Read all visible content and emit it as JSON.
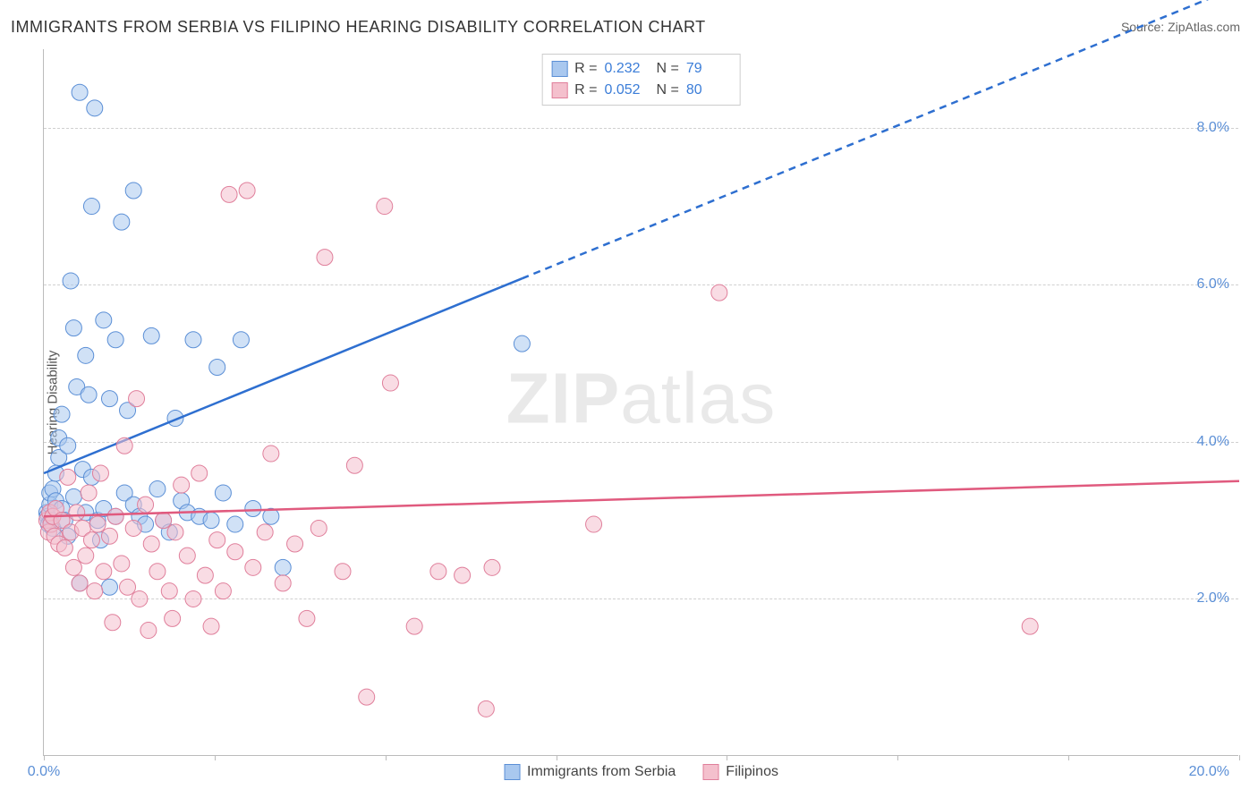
{
  "title": "IMMIGRANTS FROM SERBIA VS FILIPINO HEARING DISABILITY CORRELATION CHART",
  "source": "Source: ZipAtlas.com",
  "watermark": {
    "bold": "ZIP",
    "rest": "atlas"
  },
  "ylabel": "Hearing Disability",
  "chart": {
    "type": "scatter-with-regression",
    "xlim": [
      0,
      20
    ],
    "ylim": [
      0,
      9
    ],
    "xticks": [
      0,
      2.857,
      5.714,
      8.571,
      11.428,
      14.285,
      17.142,
      20
    ],
    "yticks": [
      2,
      4,
      6,
      8
    ],
    "ytick_labels": [
      "2.0%",
      "4.0%",
      "6.0%",
      "8.0%"
    ],
    "x0_label": "0.0%",
    "xmax_label": "20.0%",
    "grid_color": "#d0d0d0",
    "background_color": "#ffffff",
    "marker_radius": 9,
    "marker_opacity": 0.55,
    "series": [
      {
        "name": "Immigrants from Serbia",
        "fill": "#a9c8ef",
        "stroke": "#5b8fd6",
        "line_color": "#2e6fd0",
        "trend": {
          "y_at_x0": 3.6,
          "y_at_xmax": 9.8,
          "solid_until_x": 8.0,
          "dash": "8,6",
          "width": 2.5
        },
        "R": "0.232",
        "N": "79",
        "points": [
          [
            0.05,
            3.1
          ],
          [
            0.06,
            3.05
          ],
          [
            0.08,
            2.95
          ],
          [
            0.1,
            3.2
          ],
          [
            0.1,
            3.35
          ],
          [
            0.12,
            3.0
          ],
          [
            0.15,
            3.4
          ],
          [
            0.15,
            2.9
          ],
          [
            0.2,
            3.25
          ],
          [
            0.2,
            3.6
          ],
          [
            0.25,
            3.8
          ],
          [
            0.25,
            4.05
          ],
          [
            0.3,
            3.15
          ],
          [
            0.3,
            4.35
          ],
          [
            0.35,
            3.0
          ],
          [
            0.4,
            2.8
          ],
          [
            0.4,
            3.95
          ],
          [
            0.45,
            6.05
          ],
          [
            0.5,
            3.3
          ],
          [
            0.5,
            5.45
          ],
          [
            0.55,
            4.7
          ],
          [
            0.6,
            2.2
          ],
          [
            0.6,
            8.45
          ],
          [
            0.65,
            3.65
          ],
          [
            0.7,
            5.1
          ],
          [
            0.7,
            3.1
          ],
          [
            0.75,
            4.6
          ],
          [
            0.8,
            3.55
          ],
          [
            0.8,
            7.0
          ],
          [
            0.85,
            8.25
          ],
          [
            0.9,
            3.0
          ],
          [
            0.95,
            2.75
          ],
          [
            1.0,
            3.15
          ],
          [
            1.0,
            5.55
          ],
          [
            1.1,
            4.55
          ],
          [
            1.1,
            2.15
          ],
          [
            1.2,
            3.05
          ],
          [
            1.2,
            5.3
          ],
          [
            1.3,
            6.8
          ],
          [
            1.35,
            3.35
          ],
          [
            1.4,
            4.4
          ],
          [
            1.5,
            3.2
          ],
          [
            1.5,
            7.2
          ],
          [
            1.6,
            3.05
          ],
          [
            1.7,
            2.95
          ],
          [
            1.8,
            5.35
          ],
          [
            1.9,
            3.4
          ],
          [
            2.0,
            3.0
          ],
          [
            2.1,
            2.85
          ],
          [
            2.2,
            4.3
          ],
          [
            2.3,
            3.25
          ],
          [
            2.4,
            3.1
          ],
          [
            2.5,
            5.3
          ],
          [
            2.6,
            3.05
          ],
          [
            2.8,
            3.0
          ],
          [
            2.9,
            4.95
          ],
          [
            3.0,
            3.35
          ],
          [
            3.2,
            2.95
          ],
          [
            3.3,
            5.3
          ],
          [
            3.5,
            3.15
          ],
          [
            3.8,
            3.05
          ],
          [
            4.0,
            2.4
          ],
          [
            8.0,
            5.25
          ]
        ]
      },
      {
        "name": "Filipinos",
        "fill": "#f4c0cd",
        "stroke": "#e07f9b",
        "line_color": "#e05a7e",
        "trend": {
          "y_at_x0": 3.05,
          "y_at_xmax": 3.5,
          "solid_until_x": 20,
          "dash": "",
          "width": 2.5
        },
        "R": "0.052",
        "N": "80",
        "points": [
          [
            0.05,
            3.0
          ],
          [
            0.08,
            2.85
          ],
          [
            0.1,
            3.1
          ],
          [
            0.12,
            2.95
          ],
          [
            0.15,
            3.05
          ],
          [
            0.18,
            2.8
          ],
          [
            0.2,
            3.15
          ],
          [
            0.25,
            2.7
          ],
          [
            0.3,
            3.0
          ],
          [
            0.35,
            2.65
          ],
          [
            0.4,
            3.55
          ],
          [
            0.45,
            2.85
          ],
          [
            0.5,
            2.4
          ],
          [
            0.55,
            3.1
          ],
          [
            0.6,
            2.2
          ],
          [
            0.65,
            2.9
          ],
          [
            0.7,
            2.55
          ],
          [
            0.75,
            3.35
          ],
          [
            0.8,
            2.75
          ],
          [
            0.85,
            2.1
          ],
          [
            0.9,
            2.95
          ],
          [
            0.95,
            3.6
          ],
          [
            1.0,
            2.35
          ],
          [
            1.1,
            2.8
          ],
          [
            1.15,
            1.7
          ],
          [
            1.2,
            3.05
          ],
          [
            1.3,
            2.45
          ],
          [
            1.35,
            3.95
          ],
          [
            1.4,
            2.15
          ],
          [
            1.5,
            2.9
          ],
          [
            1.55,
            4.55
          ],
          [
            1.6,
            2.0
          ],
          [
            1.7,
            3.2
          ],
          [
            1.75,
            1.6
          ],
          [
            1.8,
            2.7
          ],
          [
            1.9,
            2.35
          ],
          [
            2.0,
            3.0
          ],
          [
            2.1,
            2.1
          ],
          [
            2.15,
            1.75
          ],
          [
            2.2,
            2.85
          ],
          [
            2.3,
            3.45
          ],
          [
            2.4,
            2.55
          ],
          [
            2.5,
            2.0
          ],
          [
            2.6,
            3.6
          ],
          [
            2.7,
            2.3
          ],
          [
            2.8,
            1.65
          ],
          [
            2.9,
            2.75
          ],
          [
            3.0,
            2.1
          ],
          [
            3.1,
            7.15
          ],
          [
            3.2,
            2.6
          ],
          [
            3.4,
            7.2
          ],
          [
            3.5,
            2.4
          ],
          [
            3.7,
            2.85
          ],
          [
            3.8,
            3.85
          ],
          [
            4.0,
            2.2
          ],
          [
            4.2,
            2.7
          ],
          [
            4.4,
            1.75
          ],
          [
            4.6,
            2.9
          ],
          [
            4.7,
            6.35
          ],
          [
            5.0,
            2.35
          ],
          [
            5.2,
            3.7
          ],
          [
            5.4,
            0.75
          ],
          [
            5.7,
            7.0
          ],
          [
            5.8,
            4.75
          ],
          [
            6.2,
            1.65
          ],
          [
            6.6,
            2.35
          ],
          [
            7.0,
            2.3
          ],
          [
            7.4,
            0.6
          ],
          [
            7.5,
            2.4
          ],
          [
            9.2,
            2.95
          ],
          [
            11.3,
            5.9
          ],
          [
            16.5,
            1.65
          ]
        ]
      }
    ]
  },
  "stats_box": {
    "rows": [
      {
        "swatch_fill": "#a9c8ef",
        "swatch_stroke": "#5b8fd6",
        "R": "0.232",
        "N": "79"
      },
      {
        "swatch_fill": "#f4c0cd",
        "swatch_stroke": "#e07f9b",
        "R": "0.052",
        "N": "80"
      }
    ]
  },
  "bottom_legend": [
    {
      "swatch_fill": "#a9c8ef",
      "swatch_stroke": "#5b8fd6",
      "label": "Immigrants from Serbia"
    },
    {
      "swatch_fill": "#f4c0cd",
      "swatch_stroke": "#e07f9b",
      "label": "Filipinos"
    }
  ]
}
